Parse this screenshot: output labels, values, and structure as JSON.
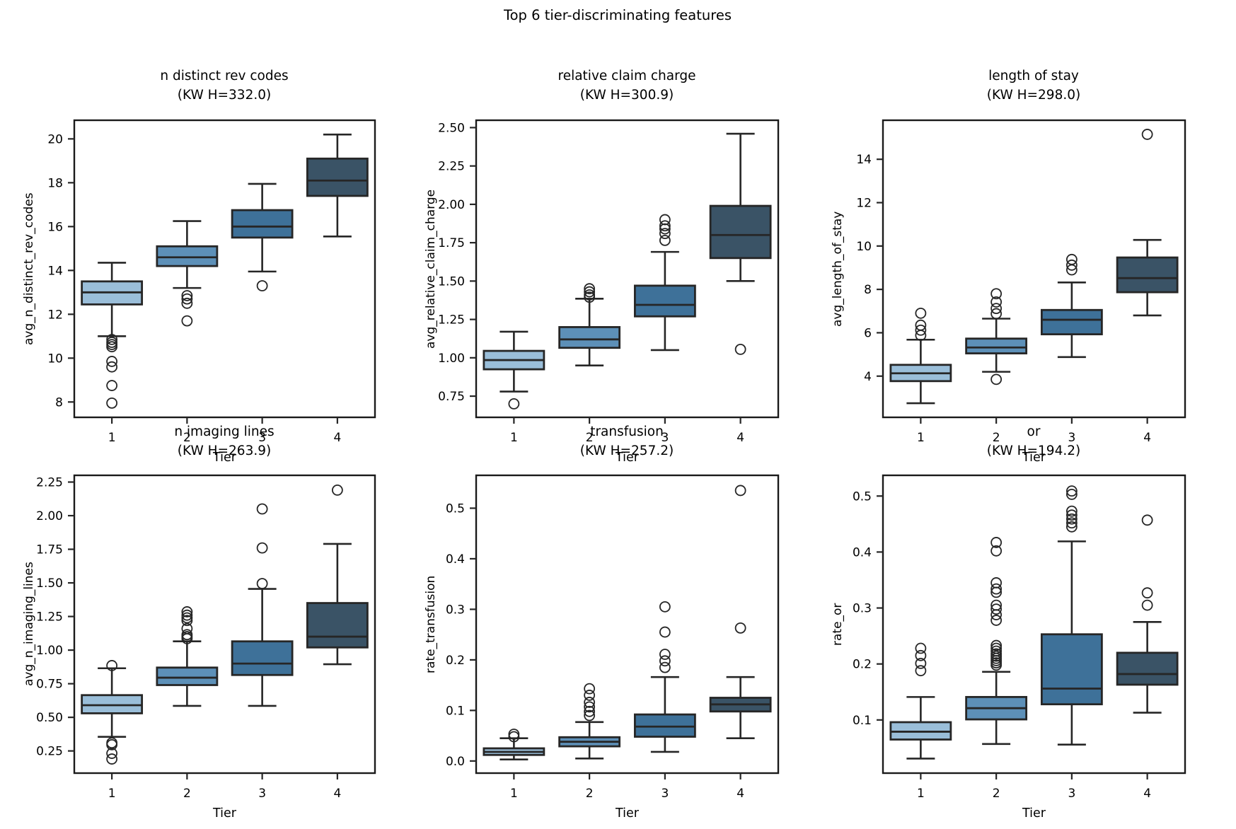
{
  "figure_title": "Top 6 tier-discriminating features",
  "palette": {
    "box_fills": [
      "#9abed9",
      "#5d90b8",
      "#3e7199",
      "#3a5366"
    ],
    "line": "#262626",
    "spine": "#1a1a1a",
    "background": "#ffffff"
  },
  "chart_data": [
    {
      "type": "boxplot",
      "title": "n distinct rev codes",
      "subtitle": "(KW H=332.0)",
      "ylabel": "avg_n_distinct_rev_codes",
      "xlabel": "Tier",
      "categories": [
        "1",
        "2",
        "3",
        "4"
      ],
      "ylim": [
        7.3,
        20.85
      ],
      "yticks": [
        8,
        10,
        12,
        14,
        16,
        18,
        20
      ],
      "yticklabels": [
        "8",
        "10",
        "12",
        "14",
        "16",
        "18",
        "20"
      ],
      "boxes": [
        {
          "tier": "1",
          "whislo": 11.0,
          "q1": 12.45,
          "med": 13.0,
          "q3": 13.5,
          "whishi": 14.35,
          "outliers": [
            10.85,
            10.72,
            10.62,
            10.52,
            9.85,
            9.6,
            8.75,
            7.95
          ]
        },
        {
          "tier": "2",
          "whislo": 13.2,
          "q1": 14.2,
          "med": 14.6,
          "q3": 15.1,
          "whishi": 16.25,
          "outliers": [
            12.85,
            12.7,
            12.5,
            11.7
          ]
        },
        {
          "tier": "3",
          "whislo": 13.95,
          "q1": 15.5,
          "med": 16.0,
          "q3": 16.75,
          "whishi": 17.95,
          "outliers": [
            13.3
          ]
        },
        {
          "tier": "4",
          "whislo": 15.55,
          "q1": 17.4,
          "med": 18.1,
          "q3": 19.1,
          "whishi": 20.2,
          "outliers": []
        }
      ]
    },
    {
      "type": "boxplot",
      "title": "relative claim charge",
      "subtitle": "(KW H=300.9)",
      "ylabel": "avg_relative_claim_charge",
      "xlabel": "Tier",
      "categories": [
        "1",
        "2",
        "3",
        "4"
      ],
      "ylim": [
        0.612,
        2.548
      ],
      "yticks": [
        0.75,
        1.0,
        1.25,
        1.5,
        1.75,
        2.0,
        2.25,
        2.5
      ],
      "yticklabels": [
        "0.75",
        "1.00",
        "1.25",
        "1.50",
        "1.75",
        "2.00",
        "2.25",
        "2.50"
      ],
      "boxes": [
        {
          "tier": "1",
          "whislo": 0.78,
          "q1": 0.925,
          "med": 0.985,
          "q3": 1.045,
          "whishi": 1.17,
          "outliers": [
            0.7
          ]
        },
        {
          "tier": "2",
          "whislo": 0.95,
          "q1": 1.065,
          "med": 1.12,
          "q3": 1.2,
          "whishi": 1.385,
          "outliers": [
            1.395,
            1.41,
            1.43,
            1.45
          ]
        },
        {
          "tier": "3",
          "whislo": 1.05,
          "q1": 1.27,
          "med": 1.345,
          "q3": 1.47,
          "whishi": 1.69,
          "outliers": [
            1.765,
            1.81,
            1.84,
            1.86,
            1.9
          ]
        },
        {
          "tier": "4",
          "whislo": 1.5,
          "q1": 1.65,
          "med": 1.8,
          "q3": 1.99,
          "whishi": 2.46,
          "outliers": [
            1.055
          ]
        }
      ]
    },
    {
      "type": "boxplot",
      "title": "length of stay",
      "subtitle": "(KW H=298.0)",
      "ylabel": "avg_length_of_stay",
      "xlabel": "Tier",
      "categories": [
        "1",
        "2",
        "3",
        "4"
      ],
      "ylim": [
        2.1,
        15.8
      ],
      "yticks": [
        4,
        6,
        8,
        10,
        12,
        14
      ],
      "yticklabels": [
        "4",
        "6",
        "8",
        "10",
        "12",
        "14"
      ],
      "boxes": [
        {
          "tier": "1",
          "whislo": 2.75,
          "q1": 3.77,
          "med": 4.13,
          "q3": 4.52,
          "whishi": 5.68,
          "outliers": [
            5.88,
            6.12,
            6.35,
            6.9
          ]
        },
        {
          "tier": "2",
          "whislo": 4.2,
          "q1": 5.05,
          "med": 5.32,
          "q3": 5.73,
          "whishi": 6.65,
          "outliers": [
            3.85,
            6.88,
            7.12,
            7.42,
            7.8
          ]
        },
        {
          "tier": "3",
          "whislo": 4.88,
          "q1": 5.93,
          "med": 6.6,
          "q3": 7.05,
          "whishi": 8.32,
          "outliers": [
            8.9,
            9.12,
            9.38
          ]
        },
        {
          "tier": "4",
          "whislo": 6.8,
          "q1": 7.87,
          "med": 8.52,
          "q3": 9.47,
          "whishi": 10.28,
          "outliers": [
            15.15
          ]
        }
      ]
    },
    {
      "type": "boxplot",
      "title": "n imaging lines",
      "subtitle": "(KW H=263.9)",
      "ylabel": "avg_n_imaging_lines",
      "xlabel": "Tier",
      "categories": [
        "1",
        "2",
        "3",
        "4"
      ],
      "ylim": [
        0.085,
        2.3
      ],
      "yticks": [
        0.25,
        0.5,
        0.75,
        1.0,
        1.25,
        1.5,
        1.75,
        2.0,
        2.25
      ],
      "yticklabels": [
        "0.25",
        "0.50",
        "0.75",
        "1.00",
        "1.25",
        "1.50",
        "1.75",
        "2.00",
        "2.25"
      ],
      "boxes": [
        {
          "tier": "1",
          "whislo": 0.355,
          "q1": 0.53,
          "med": 0.59,
          "q3": 0.665,
          "whishi": 0.865,
          "outliers": [
            0.885,
            0.31,
            0.296,
            0.232,
            0.19
          ]
        },
        {
          "tier": "2",
          "whislo": 0.585,
          "q1": 0.74,
          "med": 0.795,
          "q3": 0.87,
          "whishi": 1.065,
          "outliers": [
            1.085,
            1.1,
            1.115,
            1.16,
            1.22,
            1.24,
            1.26,
            1.285
          ]
        },
        {
          "tier": "3",
          "whislo": 0.585,
          "q1": 0.815,
          "med": 0.9,
          "q3": 1.065,
          "whishi": 1.455,
          "outliers": [
            1.495,
            1.76,
            2.05
          ]
        },
        {
          "tier": "4",
          "whislo": 0.895,
          "q1": 1.02,
          "med": 1.1,
          "q3": 1.35,
          "whishi": 1.79,
          "outliers": [
            2.19
          ]
        }
      ]
    },
    {
      "type": "boxplot",
      "title": "transfusion",
      "subtitle": "(KW H=257.2)",
      "ylabel": "rate_transfusion",
      "xlabel": "Tier",
      "categories": [
        "1",
        "2",
        "3",
        "4"
      ],
      "ylim": [
        -0.024,
        0.565
      ],
      "yticks": [
        0.0,
        0.1,
        0.2,
        0.3,
        0.4,
        0.5
      ],
      "yticklabels": [
        "0.0",
        "0.1",
        "0.2",
        "0.3",
        "0.4",
        "0.5"
      ],
      "boxes": [
        {
          "tier": "1",
          "whislo": 0.003,
          "q1": 0.012,
          "med": 0.018,
          "q3": 0.025,
          "whishi": 0.045,
          "outliers": [
            0.048,
            0.053
          ]
        },
        {
          "tier": "2",
          "whislo": 0.005,
          "q1": 0.029,
          "med": 0.038,
          "q3": 0.047,
          "whishi": 0.077,
          "outliers": [
            0.09,
            0.098,
            0.107,
            0.116,
            0.13,
            0.143
          ]
        },
        {
          "tier": "3",
          "whislo": 0.018,
          "q1": 0.048,
          "med": 0.068,
          "q3": 0.092,
          "whishi": 0.166,
          "outliers": [
            0.185,
            0.198,
            0.211,
            0.255,
            0.305
          ]
        },
        {
          "tier": "4",
          "whislo": 0.045,
          "q1": 0.098,
          "med": 0.112,
          "q3": 0.125,
          "whishi": 0.166,
          "outliers": [
            0.263,
            0.535
          ]
        }
      ]
    },
    {
      "type": "boxplot",
      "title": "or",
      "subtitle": "(KW H=194.2)",
      "ylabel": "rate_or",
      "xlabel": "Tier",
      "categories": [
        "1",
        "2",
        "3",
        "4"
      ],
      "ylim": [
        0.005,
        0.537
      ],
      "yticks": [
        0.1,
        0.2,
        0.3,
        0.4,
        0.5
      ],
      "yticklabels": [
        "0.1",
        "0.2",
        "0.3",
        "0.4",
        "0.5"
      ],
      "boxes": [
        {
          "tier": "1",
          "whislo": 0.031,
          "q1": 0.065,
          "med": 0.079,
          "q3": 0.096,
          "whishi": 0.141,
          "outliers": [
            0.188,
            0.201,
            0.215,
            0.228
          ]
        },
        {
          "tier": "2",
          "whislo": 0.057,
          "q1": 0.101,
          "med": 0.121,
          "q3": 0.141,
          "whishi": 0.186,
          "outliers": [
            0.198,
            0.202,
            0.206,
            0.21,
            0.214,
            0.218,
            0.223,
            0.228,
            0.233,
            0.278,
            0.288,
            0.298,
            0.305,
            0.328,
            0.334,
            0.345,
            0.402,
            0.417
          ]
        },
        {
          "tier": "3",
          "whislo": 0.056,
          "q1": 0.128,
          "med": 0.156,
          "q3": 0.253,
          "whishi": 0.419,
          "outliers": [
            0.445,
            0.452,
            0.459,
            0.466,
            0.473,
            0.503,
            0.509
          ]
        },
        {
          "tier": "4",
          "whislo": 0.113,
          "q1": 0.163,
          "med": 0.182,
          "q3": 0.22,
          "whishi": 0.275,
          "outliers": [
            0.305,
            0.327,
            0.457
          ]
        }
      ]
    }
  ]
}
